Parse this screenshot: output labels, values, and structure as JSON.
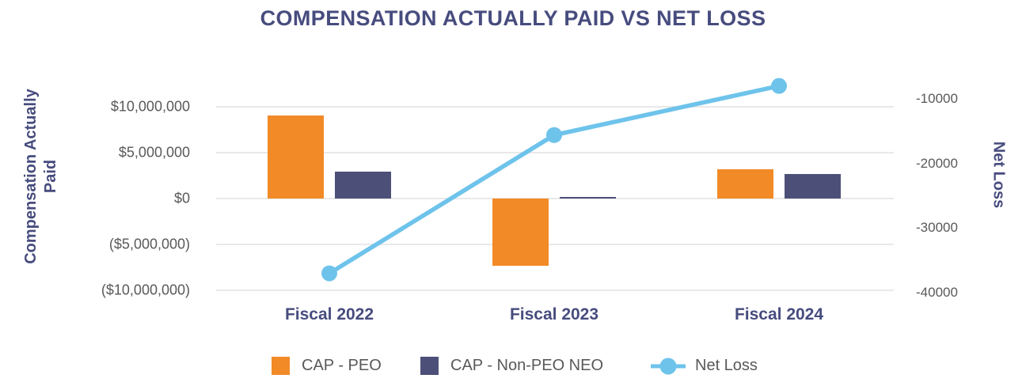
{
  "chart_data": {
    "type": "combo-bar-line",
    "title": "COMPENSATION ACTUALLY PAID VS NET LOSS",
    "categories": [
      "Fiscal 2022",
      "Fiscal 2023",
      "Fiscal 2024"
    ],
    "series": [
      {
        "name": "CAP - PEO",
        "type": "bar",
        "axis": "left",
        "color": "#F28A28",
        "values": [
          9000000,
          -7300000,
          3200000
        ]
      },
      {
        "name": "CAP - Non-PEO NEO",
        "type": "bar",
        "axis": "left",
        "color": "#4C5078",
        "values": [
          2900000,
          200000,
          2700000
        ]
      },
      {
        "name": "Net Loss",
        "type": "line",
        "axis": "right",
        "color": "#6EC3EB",
        "values": [
          -37000,
          -15600,
          -8000
        ]
      }
    ],
    "left_axis": {
      "title": "Compensation Actually Paid",
      "title_lines": [
        "Compensation Actually",
        "Paid"
      ],
      "tick_labels": [
        "$10,000,000",
        "$5,000,000",
        "$0",
        "($5,000,000)",
        "($10,000,000)"
      ],
      "tick_values": [
        10000000,
        5000000,
        0,
        -5000000,
        -10000000
      ],
      "range": [
        -10000000,
        10000000
      ]
    },
    "right_axis": {
      "title": "Net Loss",
      "tick_labels": [
        "-10000",
        "-20000",
        "-30000",
        "-40000"
      ],
      "tick_values": [
        -10000,
        -20000,
        -30000,
        -40000
      ],
      "range": [
        -40000,
        -10000
      ]
    },
    "legend": {
      "position": "bottom",
      "entries": [
        "CAP - PEO",
        "CAP - Non-PEO NEO",
        "Net Loss"
      ]
    },
    "grid": true,
    "colors": {
      "title_text": "#474C7E",
      "axis_title_text": "#474C7E",
      "category_text": "#474C7E",
      "tick_text": "#595959",
      "legend_text": "#595959",
      "gridline": "#E9E9E9",
      "background": "#FFFFFF"
    }
  }
}
